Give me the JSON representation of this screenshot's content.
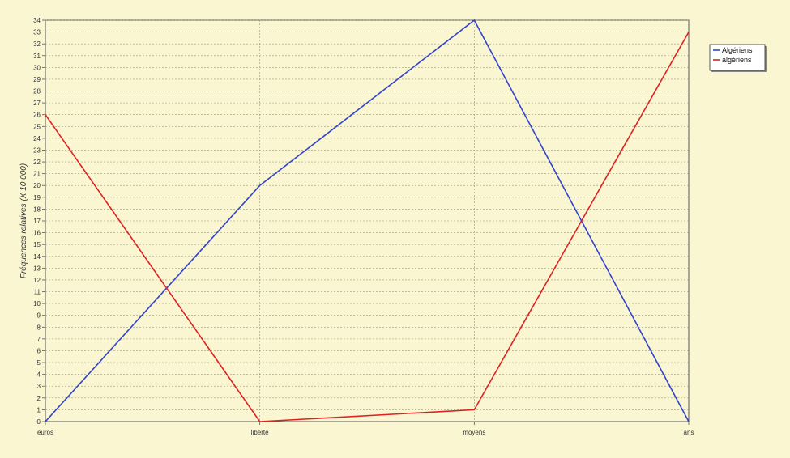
{
  "chart_data": {
    "type": "line",
    "categories": [
      "euros",
      "liberté",
      "moyens",
      "ans"
    ],
    "series": [
      {
        "name": "Algériens",
        "color": "#3344cc",
        "values": [
          0,
          20,
          34,
          0
        ]
      },
      {
        "name": "algériens",
        "color": "#dd2222",
        "values": [
          26,
          0,
          1,
          33
        ]
      }
    ],
    "title": "",
    "xlabel": "",
    "ylabel": "Fréquences relatives (X 10 000)",
    "ylim": [
      0,
      34
    ],
    "ytick_step": 1,
    "grid": true,
    "legend_position": "top-right"
  },
  "colors": {
    "background": "#faf6d2",
    "plot_background": "#faf6d2",
    "grid": "#9a9a80",
    "axis": "#555555",
    "legend_background": "#ffffff"
  }
}
